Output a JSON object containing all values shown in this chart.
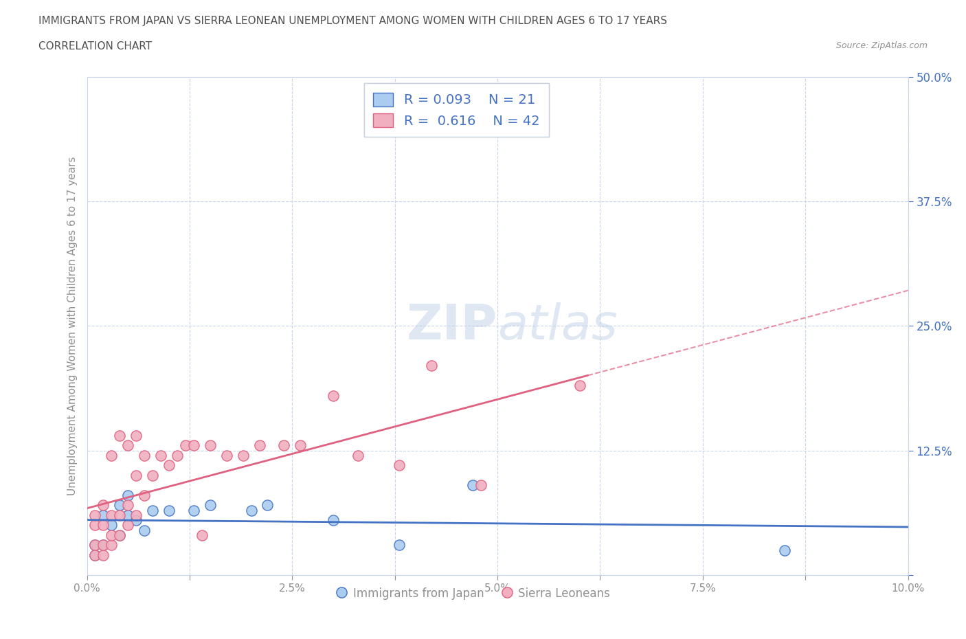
{
  "title_line1": "IMMIGRANTS FROM JAPAN VS SIERRA LEONEAN UNEMPLOYMENT AMONG WOMEN WITH CHILDREN AGES 6 TO 17 YEARS",
  "title_line2": "CORRELATION CHART",
  "source_text": "Source: ZipAtlas.com",
  "ylabel": "Unemployment Among Women with Children Ages 6 to 17 years",
  "xlim": [
    0.0,
    0.1
  ],
  "ylim": [
    0.0,
    0.5
  ],
  "xtick_vals": [
    0.0,
    0.0125,
    0.025,
    0.0375,
    0.05,
    0.0625,
    0.075,
    0.0875,
    0.1
  ],
  "xtick_labels": [
    "0.0%",
    "",
    "2.5%",
    "",
    "5.0%",
    "",
    "7.5%",
    "",
    "10.0%"
  ],
  "ytick_vals": [
    0.0,
    0.125,
    0.25,
    0.375,
    0.5
  ],
  "ytick_labels": [
    "",
    "12.5%",
    "25.0%",
    "37.5%",
    "50.0%"
  ],
  "watermark_part1": "ZIP",
  "watermark_part2": "atlas",
  "japan_R": 0.093,
  "japan_N": 21,
  "sierra_R": 0.616,
  "sierra_N": 42,
  "japan_color": "#aaccf0",
  "sierra_color": "#f0b0c0",
  "japan_line_color": "#4472c4",
  "sierra_line_color": "#e06080",
  "japan_scatter_x": [
    0.001,
    0.001,
    0.002,
    0.002,
    0.003,
    0.004,
    0.004,
    0.005,
    0.005,
    0.006,
    0.007,
    0.008,
    0.01,
    0.013,
    0.015,
    0.02,
    0.022,
    0.03,
    0.038,
    0.047,
    0.085
  ],
  "japan_scatter_y": [
    0.02,
    0.03,
    0.03,
    0.06,
    0.05,
    0.04,
    0.07,
    0.06,
    0.08,
    0.055,
    0.045,
    0.065,
    0.065,
    0.065,
    0.07,
    0.065,
    0.07,
    0.055,
    0.03,
    0.09,
    0.025
  ],
  "sierra_scatter_x": [
    0.001,
    0.001,
    0.001,
    0.001,
    0.002,
    0.002,
    0.002,
    0.002,
    0.003,
    0.003,
    0.003,
    0.003,
    0.004,
    0.004,
    0.004,
    0.005,
    0.005,
    0.005,
    0.006,
    0.006,
    0.006,
    0.007,
    0.007,
    0.008,
    0.009,
    0.01,
    0.011,
    0.012,
    0.013,
    0.014,
    0.015,
    0.017,
    0.019,
    0.021,
    0.024,
    0.026,
    0.03,
    0.033,
    0.038,
    0.042,
    0.048,
    0.06
  ],
  "sierra_scatter_y": [
    0.02,
    0.03,
    0.05,
    0.06,
    0.02,
    0.03,
    0.05,
    0.07,
    0.03,
    0.04,
    0.06,
    0.12,
    0.04,
    0.06,
    0.14,
    0.05,
    0.07,
    0.13,
    0.06,
    0.1,
    0.14,
    0.08,
    0.12,
    0.1,
    0.12,
    0.11,
    0.12,
    0.13,
    0.13,
    0.04,
    0.13,
    0.12,
    0.12,
    0.13,
    0.13,
    0.13,
    0.18,
    0.12,
    0.11,
    0.21,
    0.09,
    0.19
  ],
  "legend_label_japan": "Immigrants from Japan",
  "legend_label_sierra": "Sierra Leoneans",
  "background_color": "#ffffff",
  "grid_color": "#c8d4e8",
  "title_color": "#505050",
  "axis_color": "#909090",
  "ytick_color": "#4472c4"
}
